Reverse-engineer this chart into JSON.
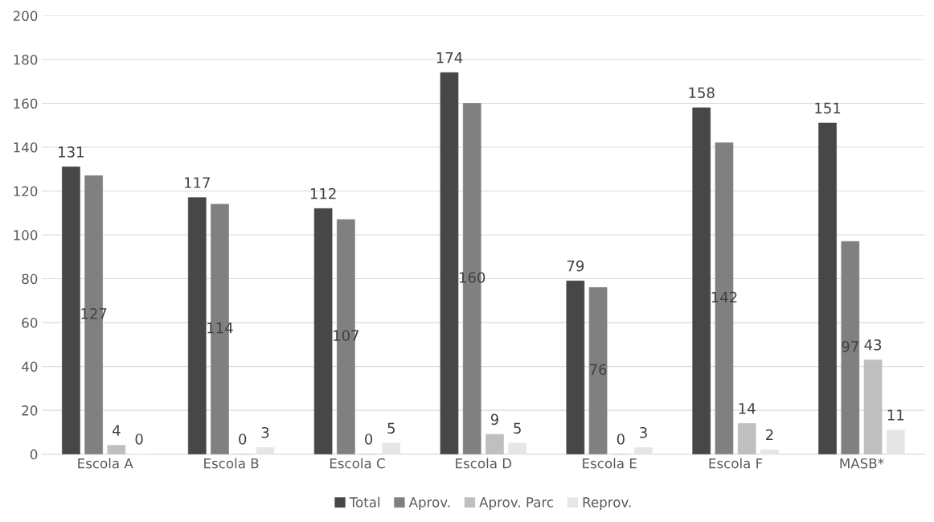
{
  "chart_data": {
    "type": "bar",
    "categories": [
      "Escola A",
      "Escola B",
      "Escola C",
      "Escola D",
      "Escola E",
      "Escola F",
      "MASB*"
    ],
    "series": [
      {
        "name": "Total",
        "color": "#474747",
        "values": [
          131,
          117,
          112,
          174,
          79,
          158,
          151
        ]
      },
      {
        "name": "Aprov.",
        "color": "#808080",
        "values": [
          127,
          114,
          107,
          160,
          76,
          142,
          97
        ]
      },
      {
        "name": "Aprov. Parc",
        "color": "#bfbfbf",
        "values": [
          4,
          0,
          0,
          9,
          0,
          14,
          43
        ]
      },
      {
        "name": "Reprov.",
        "color": "#e6e6e6",
        "values": [
          0,
          3,
          5,
          5,
          3,
          2,
          11
        ]
      }
    ],
    "ylim": [
      0,
      200
    ],
    "yticks": [
      0,
      20,
      40,
      60,
      80,
      100,
      120,
      140,
      160,
      180,
      200
    ],
    "grid": "y",
    "legend": "bottom",
    "data_labels": true
  }
}
